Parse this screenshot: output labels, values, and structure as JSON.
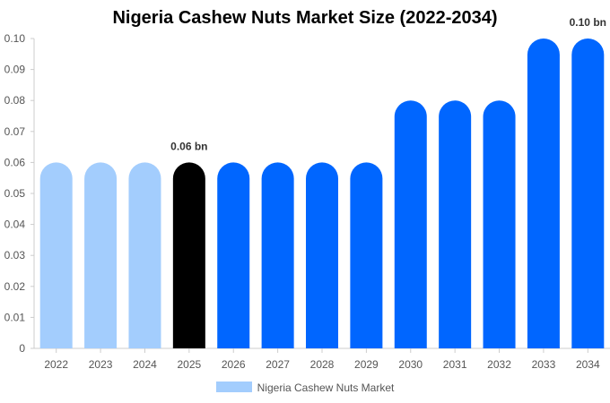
{
  "chart_data": {
    "type": "bar",
    "title": "Nigeria Cashew Nuts Market Size (2022-2034)",
    "categories": [
      "2022",
      "2023",
      "2024",
      "2025",
      "2026",
      "2027",
      "2028",
      "2029",
      "2030",
      "2031",
      "2032",
      "2033",
      "2034"
    ],
    "series": [
      {
        "name": "Nigeria Cashew Nuts Market",
        "values": [
          0.06,
          0.06,
          0.06,
          0.06,
          0.06,
          0.06,
          0.06,
          0.06,
          0.08,
          0.08,
          0.08,
          0.1,
          0.1
        ]
      }
    ],
    "ylim": [
      0,
      0.1
    ],
    "yticks": [
      "0",
      "0.01",
      "0.02",
      "0.03",
      "0.04",
      "0.05",
      "0.06",
      "0.07",
      "0.08",
      "0.09",
      "0.10"
    ],
    "data_labels": [
      {
        "category": "2025",
        "text": "0.06 bn"
      },
      {
        "category": "2034",
        "text": "0.10 bn"
      }
    ],
    "colors": {
      "historic": "#a3cdfd",
      "current": "#000000",
      "forecast": "#0066ff"
    },
    "bar_color_groups": [
      "historic",
      "historic",
      "historic",
      "current",
      "forecast",
      "forecast",
      "forecast",
      "forecast",
      "forecast",
      "forecast",
      "forecast",
      "forecast",
      "forecast"
    ],
    "legend": {
      "position": "bottom"
    },
    "grid": false
  }
}
